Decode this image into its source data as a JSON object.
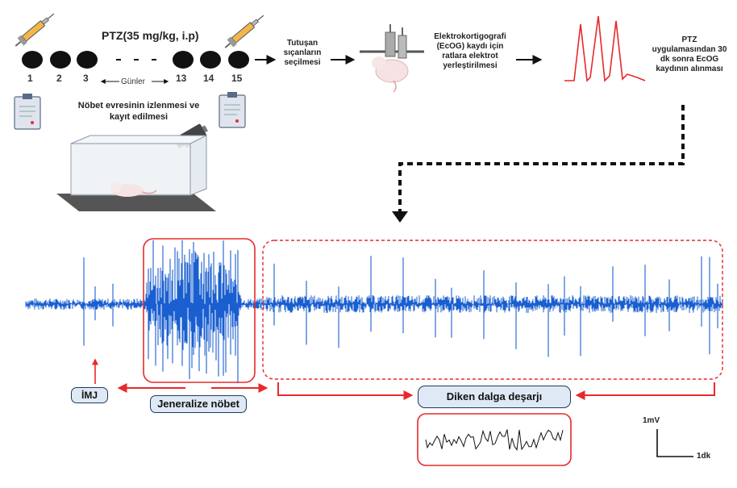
{
  "protocol": {
    "drug_label": "PTZ(35 mg/kg, i.p)",
    "days": [
      "1",
      "2",
      "3",
      "13",
      "14",
      "15"
    ],
    "gap": "- - -",
    "days_label": "Günler",
    "monitoring_label": "Nöbet evresinin izlenmesi ve kayıt edilmesi",
    "step_select": "Tutuşan sıçanların seçilmesi",
    "step_electrode": "Elektrokortigografi (EcOG) kaydı için ratlara elektrot yerleştirilmesi",
    "step_record": "PTZ uygulamasından 30 dk sonra EcOG kaydının alınması"
  },
  "trace": {
    "label_imj": "İMJ",
    "label_generalized": "Jeneralize nöbet",
    "label_spike_wave": "Diken dalga deşarjı",
    "scale_voltage": "1mV",
    "scale_time": "1dk"
  },
  "colors": {
    "trace_blue": "#1a5fd0",
    "arrow_red": "#e8292b",
    "box_fill": "#dfe9f5",
    "box_border": "#1f3a5a"
  },
  "icons": [
    "syringe-icon",
    "clipboard-icon",
    "camera-icon",
    "cage-icon",
    "rat-electrode-icon"
  ]
}
